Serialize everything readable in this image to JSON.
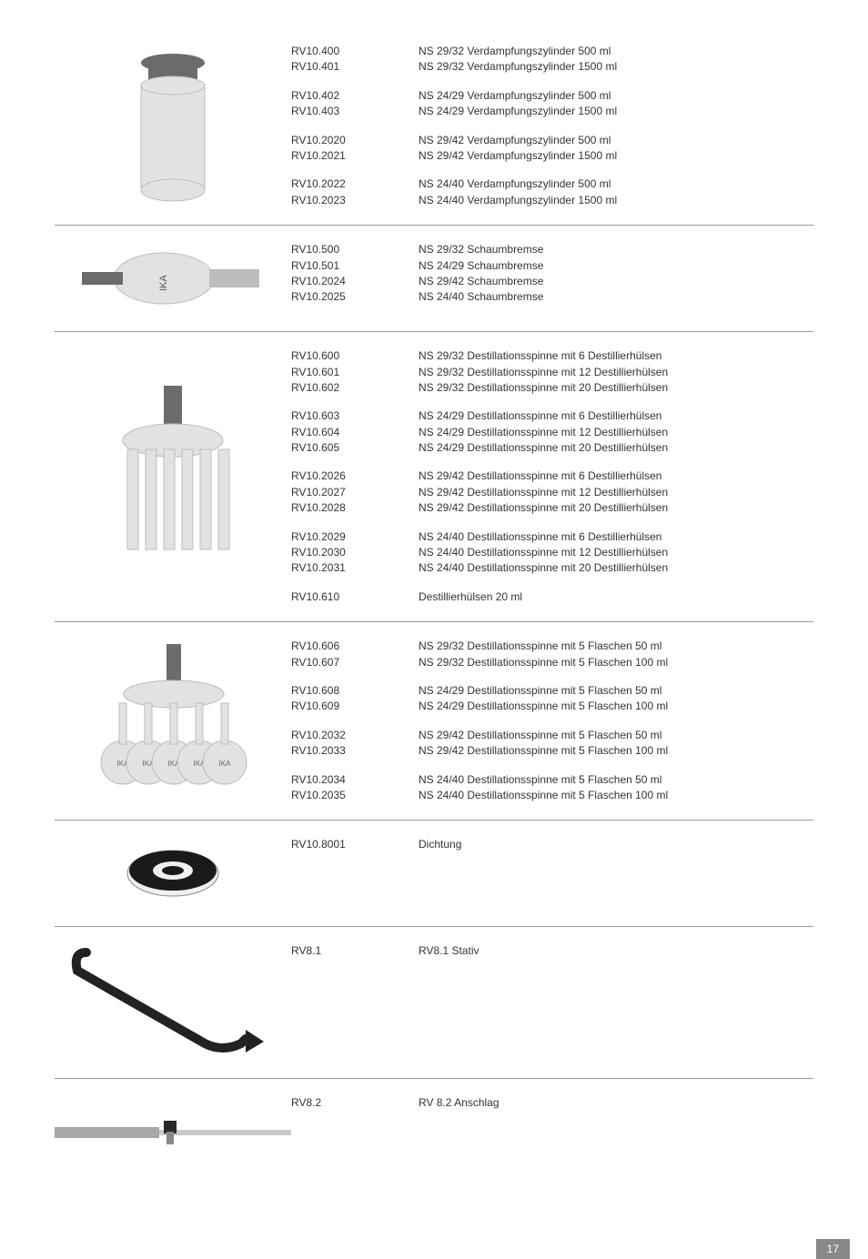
{
  "page_number": "17",
  "rows": [
    {
      "img": {
        "type": "cylinder"
      },
      "groups": [
        {
          "codes": [
            "RV10.400",
            "RV10.401"
          ],
          "descs": [
            "NS 29/32 Verdampfungszylinder  500 ml",
            "NS 29/32 Verdampfungszylinder 1500 ml"
          ]
        },
        {
          "codes": [
            "RV10.402",
            "RV10.403"
          ],
          "descs": [
            "NS 24/29 Verdampfungszylinder  500 ml",
            "NS 24/29 Verdampfungszylinder 1500 ml"
          ]
        },
        {
          "codes": [
            "RV10.2020",
            "RV10.2021"
          ],
          "descs": [
            "NS 29/42 Verdampfungszylinder  500 ml",
            "NS 29/42 Verdampfungszylinder 1500 ml"
          ]
        },
        {
          "codes": [
            "RV10.2022",
            "RV10.2023"
          ],
          "descs": [
            "NS 24/40 Verdampfungszylinder  500 ml",
            "NS 24/40 Verdampfungszylinder 1500 ml"
          ]
        }
      ]
    },
    {
      "img": {
        "type": "foam"
      },
      "groups": [
        {
          "codes": [
            "RV10.500",
            "RV10.501",
            "RV10.2024",
            "RV10.2025"
          ],
          "descs": [
            "NS 29/32 Schaumbremse",
            "NS 24/29 Schaumbremse",
            "NS 29/42 Schaumbremse",
            "NS 24/40 Schaumbremse"
          ]
        }
      ]
    },
    {
      "img": {
        "type": "spider6"
      },
      "groups": [
        {
          "codes": [
            "RV10.600",
            "RV10.601",
            "RV10.602"
          ],
          "descs": [
            "NS 29/32 Destillationsspinne mit  6 Destillierhülsen",
            "NS 29/32 Destillationsspinne mit 12 Destillierhülsen",
            "NS 29/32 Destillationsspinne mit 20 Destillierhülsen"
          ]
        },
        {
          "codes": [
            "RV10.603",
            "RV10.604",
            "RV10.605"
          ],
          "descs": [
            "NS 24/29 Destillationsspinne mit  6 Destillierhülsen",
            "NS 24/29 Destillationsspinne mit 12 Destillierhülsen",
            "NS 24/29 Destillationsspinne mit 20 Destillierhülsen"
          ]
        },
        {
          "codes": [
            "RV10.2026",
            "RV10.2027",
            "RV10.2028"
          ],
          "descs": [
            "NS 29/42 Destillationsspinne mit  6 Destillierhülsen",
            "NS 29/42 Destillationsspinne mit 12 Destillierhülsen",
            "NS 29/42 Destillationsspinne mit 20 Destillierhülsen"
          ]
        },
        {
          "codes": [
            "RV10.2029",
            "RV10.2030",
            "RV10.2031"
          ],
          "descs": [
            "NS 24/40 Destillationsspinne mit  6 Destillierhülsen",
            "NS 24/40 Destillationsspinne mit 12 Destillierhülsen",
            "NS 24/40 Destillationsspinne mit 20 Destillierhülsen"
          ]
        },
        {
          "codes": [
            "RV10.610"
          ],
          "descs": [
            "Destillierhülsen 20 ml"
          ]
        }
      ]
    },
    {
      "img": {
        "type": "spider5"
      },
      "groups": [
        {
          "codes": [
            "RV10.606",
            "RV10.607"
          ],
          "descs": [
            "NS 29/32 Destillationsspinne mit 5 Flaschen  50 ml",
            "NS 29/32 Destillationsspinne mit 5 Flaschen 100 ml"
          ]
        },
        {
          "codes": [
            "RV10.608",
            "RV10.609"
          ],
          "descs": [
            "NS 24/29 Destillationsspinne mit 5 Flaschen  50 ml",
            "NS 24/29 Destillationsspinne mit 5 Flaschen 100 ml"
          ]
        },
        {
          "codes": [
            "RV10.2032",
            "RV10.2033"
          ],
          "descs": [
            "NS 29/42 Destillationsspinne mit 5 Flaschen  50 ml",
            "NS 29/42 Destillationsspinne mit 5 Flaschen 100 ml"
          ]
        },
        {
          "codes": [
            "RV10.2034",
            "RV10.2035"
          ],
          "descs": [
            "NS 24/40 Destillationsspinne mit 5 Flaschen  50 ml",
            "NS 24/40 Destillationsspinne mit 5 Flaschen 100 ml"
          ]
        }
      ]
    },
    {
      "img": {
        "type": "seal"
      },
      "groups": [
        {
          "codes": [
            "RV10.8001"
          ],
          "descs": [
            "Dichtung"
          ]
        }
      ]
    },
    {
      "img": {
        "type": "stand"
      },
      "groups": [
        {
          "codes": [
            "RV8.1"
          ],
          "descs": [
            "RV8.1 Stativ"
          ]
        }
      ]
    },
    {
      "img": {
        "type": "stop"
      },
      "noborder": true,
      "groups": [
        {
          "codes": [
            "RV8.2"
          ],
          "descs": [
            "RV 8.2 Anschlag"
          ]
        }
      ]
    }
  ]
}
